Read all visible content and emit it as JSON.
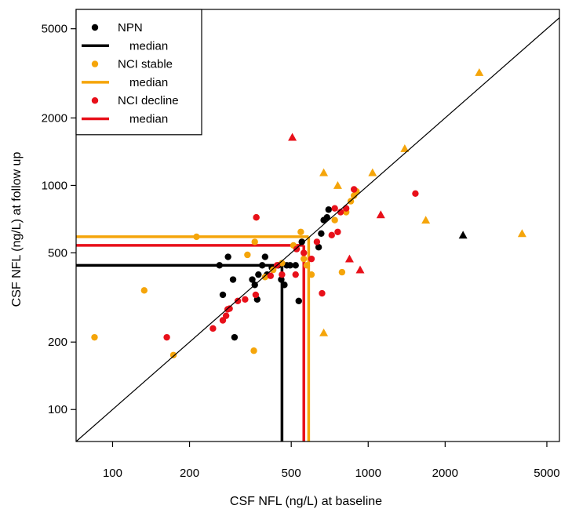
{
  "chart_data": {
    "type": "scatter",
    "xlabel": "CSF NFL (ng/L) at baseline",
    "ylabel": "CSF NFL (ng/L) at follow up",
    "scale": "log",
    "xlim": [
      72,
      5600
    ],
    "ylim": [
      72,
      6100
    ],
    "xticks": [
      100,
      200,
      500,
      1000,
      2000,
      5000
    ],
    "yticks": [
      100,
      200,
      500,
      1000,
      2000,
      5000
    ],
    "grid": false,
    "identity_line": true,
    "legend": {
      "placement": "top-left",
      "entries": [
        {
          "label": "NPN",
          "kind": "point",
          "color": "#000000"
        },
        {
          "label": "median",
          "kind": "line",
          "color": "#000000"
        },
        {
          "label": "NCI stable",
          "kind": "point",
          "color": "#f5a50a"
        },
        {
          "label": "median",
          "kind": "line",
          "color": "#f5a50a"
        },
        {
          "label": "NCI decline",
          "kind": "point",
          "color": "#e8101a"
        },
        {
          "label": "median",
          "kind": "line",
          "color": "#e8101a"
        }
      ]
    },
    "series": [
      {
        "name": "NPN",
        "color": "#000000",
        "median": {
          "x": 460,
          "y": 440
        },
        "points": [
          {
            "x": 262,
            "y": 440,
            "shape": "circle"
          },
          {
            "x": 270,
            "y": 325,
            "shape": "circle"
          },
          {
            "x": 283,
            "y": 480,
            "shape": "circle"
          },
          {
            "x": 296,
            "y": 380,
            "shape": "circle"
          },
          {
            "x": 300,
            "y": 210,
            "shape": "circle"
          },
          {
            "x": 352,
            "y": 380,
            "shape": "circle"
          },
          {
            "x": 360,
            "y": 360,
            "shape": "circle"
          },
          {
            "x": 368,
            "y": 310,
            "shape": "circle"
          },
          {
            "x": 372,
            "y": 400,
            "shape": "circle"
          },
          {
            "x": 385,
            "y": 440,
            "shape": "circle"
          },
          {
            "x": 395,
            "y": 480,
            "shape": "circle"
          },
          {
            "x": 402,
            "y": 400,
            "shape": "circle"
          },
          {
            "x": 420,
            "y": 430,
            "shape": "circle"
          },
          {
            "x": 445,
            "y": 440,
            "shape": "circle"
          },
          {
            "x": 457,
            "y": 380,
            "shape": "circle"
          },
          {
            "x": 470,
            "y": 360,
            "shape": "circle"
          },
          {
            "x": 480,
            "y": 440,
            "shape": "circle"
          },
          {
            "x": 495,
            "y": 440,
            "shape": "circle"
          },
          {
            "x": 520,
            "y": 440,
            "shape": "circle"
          },
          {
            "x": 535,
            "y": 305,
            "shape": "circle"
          },
          {
            "x": 550,
            "y": 560,
            "shape": "circle"
          },
          {
            "x": 640,
            "y": 530,
            "shape": "circle"
          },
          {
            "x": 655,
            "y": 610,
            "shape": "circle"
          },
          {
            "x": 670,
            "y": 700,
            "shape": "circle"
          },
          {
            "x": 690,
            "y": 720,
            "shape": "circle"
          },
          {
            "x": 700,
            "y": 780,
            "shape": "circle"
          },
          {
            "x": 2350,
            "y": 600,
            "shape": "triangle"
          }
        ]
      },
      {
        "name": "NCI stable",
        "color": "#f5a50a",
        "median": {
          "x": 585,
          "y": 590
        },
        "points": [
          {
            "x": 85,
            "y": 210,
            "shape": "circle"
          },
          {
            "x": 133,
            "y": 340,
            "shape": "circle"
          },
          {
            "x": 173,
            "y": 175,
            "shape": "circle"
          },
          {
            "x": 213,
            "y": 590,
            "shape": "circle"
          },
          {
            "x": 337,
            "y": 490,
            "shape": "circle"
          },
          {
            "x": 357,
            "y": 183,
            "shape": "circle"
          },
          {
            "x": 360,
            "y": 560,
            "shape": "circle"
          },
          {
            "x": 365,
            "y": 720,
            "shape": "circle"
          },
          {
            "x": 395,
            "y": 390,
            "shape": "circle"
          },
          {
            "x": 425,
            "y": 420,
            "shape": "circle"
          },
          {
            "x": 460,
            "y": 450,
            "shape": "circle"
          },
          {
            "x": 510,
            "y": 540,
            "shape": "circle"
          },
          {
            "x": 545,
            "y": 620,
            "shape": "circle"
          },
          {
            "x": 560,
            "y": 470,
            "shape": "circle"
          },
          {
            "x": 575,
            "y": 440,
            "shape": "circle"
          },
          {
            "x": 600,
            "y": 400,
            "shape": "circle"
          },
          {
            "x": 740,
            "y": 700,
            "shape": "circle"
          },
          {
            "x": 790,
            "y": 410,
            "shape": "circle"
          },
          {
            "x": 820,
            "y": 760,
            "shape": "circle"
          },
          {
            "x": 855,
            "y": 850,
            "shape": "circle"
          },
          {
            "x": 880,
            "y": 900,
            "shape": "circle"
          },
          {
            "x": 900,
            "y": 940,
            "shape": "circle"
          },
          {
            "x": 670,
            "y": 1140,
            "shape": "triangle"
          },
          {
            "x": 670,
            "y": 220,
            "shape": "triangle"
          },
          {
            "x": 760,
            "y": 1000,
            "shape": "triangle"
          },
          {
            "x": 1040,
            "y": 1140,
            "shape": "triangle"
          },
          {
            "x": 1390,
            "y": 1460,
            "shape": "triangle"
          },
          {
            "x": 1680,
            "y": 700,
            "shape": "triangle"
          },
          {
            "x": 2720,
            "y": 3190,
            "shape": "triangle"
          },
          {
            "x": 4000,
            "y": 610,
            "shape": "triangle"
          }
        ]
      },
      {
        "name": "NCI decline",
        "color": "#e8101a",
        "median": {
          "x": 560,
          "y": 540
        },
        "points": [
          {
            "x": 163,
            "y": 210,
            "shape": "circle"
          },
          {
            "x": 247,
            "y": 230,
            "shape": "circle"
          },
          {
            "x": 270,
            "y": 250,
            "shape": "circle"
          },
          {
            "x": 278,
            "y": 262,
            "shape": "circle"
          },
          {
            "x": 282,
            "y": 280,
            "shape": "circle"
          },
          {
            "x": 287,
            "y": 282,
            "shape": "circle"
          },
          {
            "x": 309,
            "y": 305,
            "shape": "circle"
          },
          {
            "x": 330,
            "y": 310,
            "shape": "circle"
          },
          {
            "x": 363,
            "y": 325,
            "shape": "circle"
          },
          {
            "x": 365,
            "y": 720,
            "shape": "circle"
          },
          {
            "x": 415,
            "y": 395,
            "shape": "circle"
          },
          {
            "x": 440,
            "y": 440,
            "shape": "circle"
          },
          {
            "x": 460,
            "y": 400,
            "shape": "circle"
          },
          {
            "x": 520,
            "y": 400,
            "shape": "circle"
          },
          {
            "x": 525,
            "y": 520,
            "shape": "circle"
          },
          {
            "x": 560,
            "y": 500,
            "shape": "circle"
          },
          {
            "x": 600,
            "y": 470,
            "shape": "circle"
          },
          {
            "x": 630,
            "y": 560,
            "shape": "circle"
          },
          {
            "x": 660,
            "y": 330,
            "shape": "circle"
          },
          {
            "x": 720,
            "y": 600,
            "shape": "circle"
          },
          {
            "x": 740,
            "y": 790,
            "shape": "circle"
          },
          {
            "x": 760,
            "y": 620,
            "shape": "circle"
          },
          {
            "x": 780,
            "y": 760,
            "shape": "circle"
          },
          {
            "x": 820,
            "y": 790,
            "shape": "circle"
          },
          {
            "x": 880,
            "y": 960,
            "shape": "circle"
          },
          {
            "x": 1530,
            "y": 920,
            "shape": "circle"
          },
          {
            "x": 505,
            "y": 1640,
            "shape": "triangle"
          },
          {
            "x": 845,
            "y": 470,
            "shape": "triangle"
          },
          {
            "x": 930,
            "y": 420,
            "shape": "triangle"
          },
          {
            "x": 1120,
            "y": 740,
            "shape": "triangle"
          }
        ]
      }
    ]
  }
}
